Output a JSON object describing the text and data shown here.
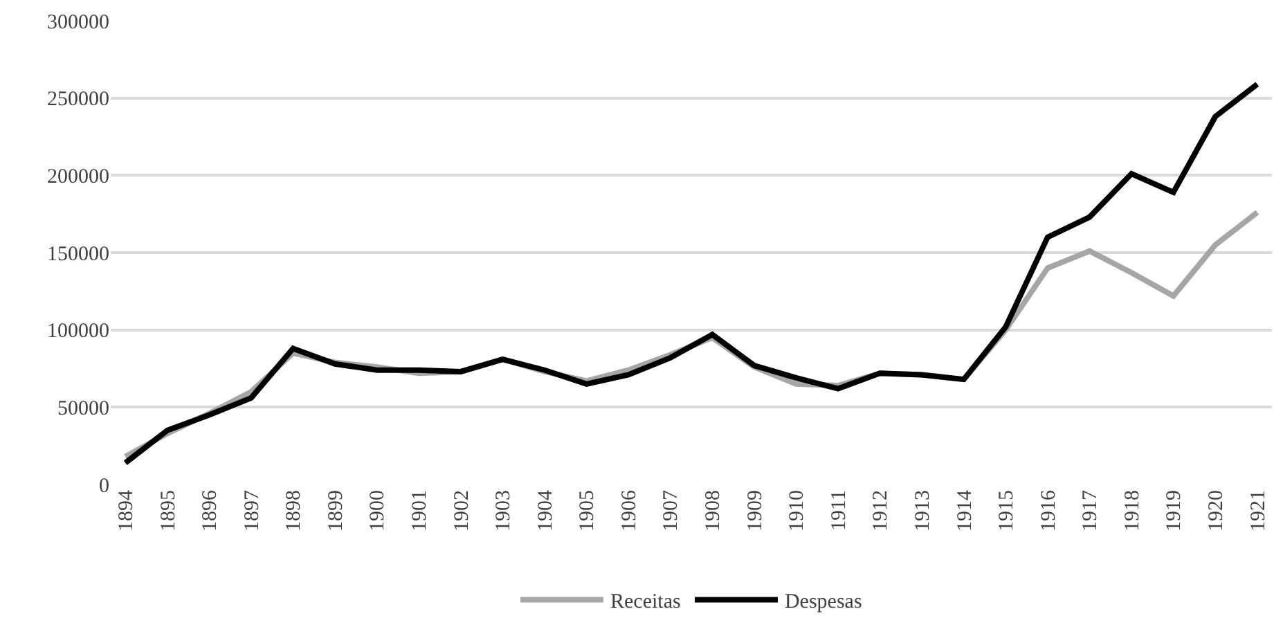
{
  "chart_data": {
    "type": "line",
    "categories": [
      "1894",
      "1895",
      "1896",
      "1897",
      "1898",
      "1899",
      "1900",
      "1901",
      "1902",
      "1903",
      "1904",
      "1905",
      "1906",
      "1907",
      "1908",
      "1909",
      "1910",
      "1911",
      "1912",
      "1913",
      "1914",
      "1915",
      "1916",
      "1917",
      "1918",
      "1919",
      "1920",
      "1921"
    ],
    "series": [
      {
        "name": "Receitas",
        "color": "#a6a6a6",
        "values": [
          18000,
          33000,
          46000,
          60000,
          85000,
          79000,
          76000,
          72000,
          73000,
          81000,
          73000,
          67000,
          74000,
          84000,
          95000,
          76000,
          65000,
          64000,
          72000,
          71000,
          68000,
          100000,
          140000,
          151000,
          137000,
          122000,
          155000,
          176000
        ]
      },
      {
        "name": "Despesas",
        "color": "#000000",
        "values": [
          14000,
          35000,
          45000,
          56000,
          88000,
          78000,
          74000,
          74000,
          73000,
          81000,
          74000,
          65000,
          71000,
          82000,
          97000,
          77000,
          69000,
          62000,
          72000,
          71000,
          68000,
          102000,
          160000,
          173000,
          201000,
          189000,
          238000,
          259000
        ]
      }
    ],
    "ylim": [
      0,
      300000
    ],
    "yticks": [
      0,
      50000,
      100000,
      150000,
      200000,
      250000,
      300000
    ],
    "grid": "y",
    "legend": "bottom",
    "marker": "none",
    "line_style": "solid"
  }
}
